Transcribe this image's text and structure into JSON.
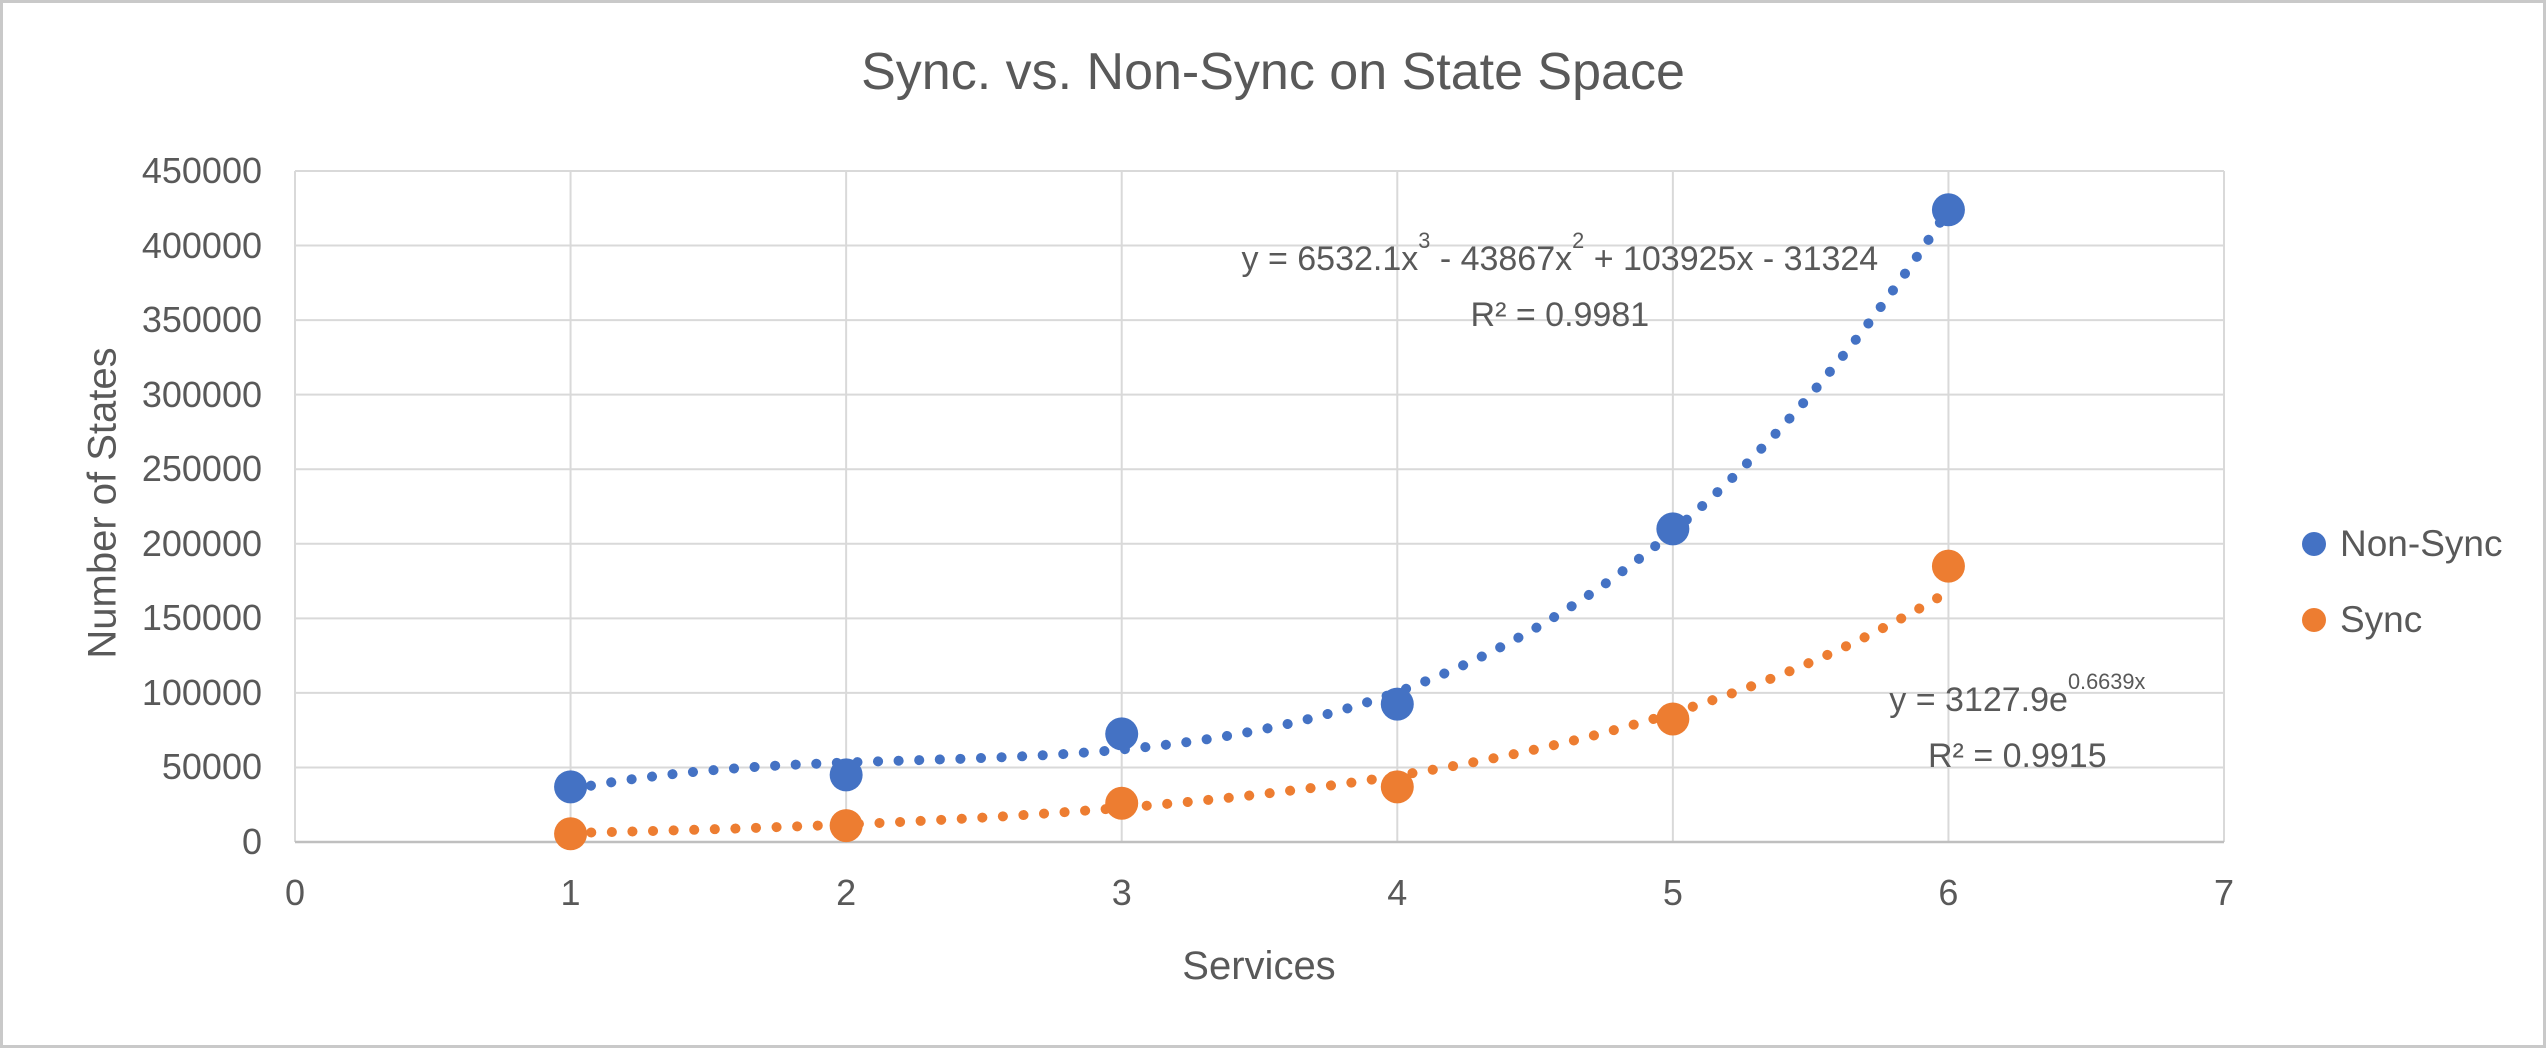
{
  "chart_data": {
    "type": "scatter",
    "title": "Sync. vs. Non-Sync on State Space",
    "xlabel": "Services",
    "ylabel": "Number of States",
    "xlim": [
      0,
      7
    ],
    "ylim": [
      0,
      450000
    ],
    "xticks": [
      0,
      1,
      2,
      3,
      4,
      5,
      6,
      7
    ],
    "yticks": [
      0,
      50000,
      100000,
      150000,
      200000,
      250000,
      300000,
      350000,
      400000,
      450000
    ],
    "grid": true,
    "legend_position": "right-middle",
    "series": [
      {
        "name": "Non-Sync",
        "color": "#4472C4",
        "marker": "circle",
        "x": [
          1,
          2,
          3,
          4,
          5,
          6
        ],
        "y": [
          37000,
          45000,
          72500,
          92500,
          210000,
          424000
        ],
        "trendline": {
          "kind": "poly3",
          "coeffs": [
            6532.1,
            -43867,
            103925,
            -31324
          ],
          "style": "dotted",
          "domain": [
            1,
            6
          ]
        }
      },
      {
        "name": "Sync",
        "color": "#ED7D31",
        "marker": "circle",
        "x": [
          1,
          2,
          3,
          4,
          5,
          6
        ],
        "y": [
          5500,
          11000,
          26000,
          37000,
          82500,
          185000
        ],
        "trendline": {
          "kind": "exp",
          "a": 3127.9,
          "b": 0.6639,
          "style": "dotted",
          "domain": [
            1,
            6
          ]
        }
      }
    ],
    "annotations": [
      {
        "series": "Non-Sync",
        "equation_segments": [
          {
            "t": "y = 6532.1x"
          },
          {
            "sup": "3"
          },
          {
            "t": " - 43867x"
          },
          {
            "sup": "2"
          },
          {
            "t": " + 103925x - 31324"
          }
        ],
        "r2": "R² = 0.9981",
        "anchor": {
          "x": 4.59,
          "y": 410000
        }
      },
      {
        "series": "Sync",
        "equation_segments": [
          {
            "t": "y = 3127.9e"
          },
          {
            "sup": "0.6639x"
          }
        ],
        "r2": "R² = 0.9915",
        "anchor": {
          "x": 6.25,
          "y": 114000
        }
      }
    ],
    "colors": {
      "text": "#595959",
      "gridline": "#D9D9D9",
      "axis_line": "#BFBFBF",
      "background": "#FFFFFF",
      "border": "#C9C9C9"
    }
  }
}
